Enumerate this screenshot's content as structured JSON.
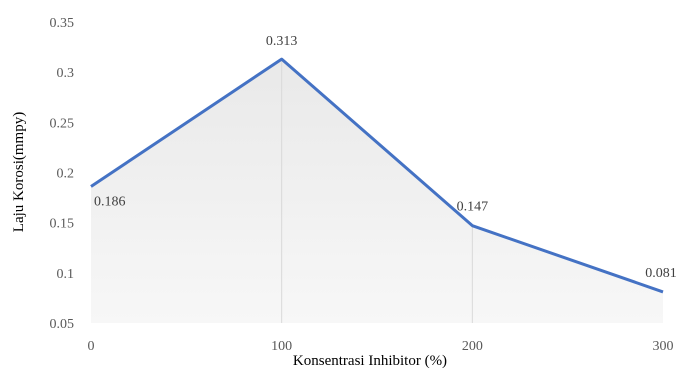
{
  "chart_data": {
    "type": "area",
    "x": [
      0,
      100,
      200,
      300
    ],
    "series": [
      {
        "values": [
          0.186,
          0.313,
          0.147,
          0.081
        ],
        "color": "#4472C4"
      }
    ],
    "data_labels": [
      "0.186",
      "0.313",
      "0.147",
      "0.081"
    ],
    "xlabel": "Konsentrasi Inhibitor (%)",
    "ylabel": "Laju Korosi(mmpy)",
    "xlim": [
      0,
      300
    ],
    "ylim": [
      0.05,
      0.35
    ],
    "x_ticks": [
      "0",
      "100",
      "200",
      "300"
    ],
    "y_ticks": [
      "0.05",
      "0.1",
      "0.15",
      "0.2",
      "0.25",
      "0.3",
      "0.35"
    ],
    "grid": false,
    "legend": "none",
    "fill": "light gray gradient under the line"
  }
}
